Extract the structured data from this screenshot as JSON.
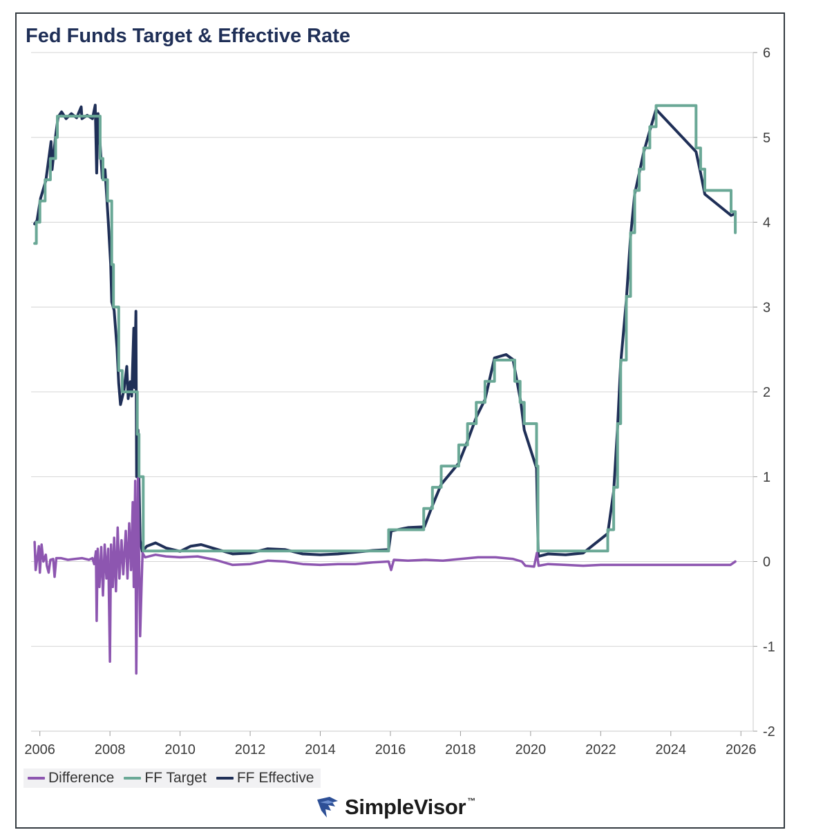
{
  "chart_data": {
    "type": "line",
    "title": "Fed Funds Target & Effective Rate",
    "xlabel": "",
    "ylabel": "",
    "xlim": [
      2005.75,
      2026.35
    ],
    "ylim": [
      -2,
      6
    ],
    "x_ticks": [
      2006,
      2008,
      2010,
      2012,
      2014,
      2016,
      2018,
      2020,
      2022,
      2024,
      2026
    ],
    "y_ticks": [
      -2,
      -1,
      0,
      1,
      2,
      3,
      4,
      5,
      6
    ],
    "y_axis_side": "right",
    "grid": "horizontal",
    "legend_position": "bottom-left",
    "series": [
      {
        "name": "FF Target",
        "color": "#6aa896",
        "step": true,
        "points": [
          [
            2005.85,
            3.75
          ],
          [
            2005.9,
            4.0
          ],
          [
            2006.0,
            4.25
          ],
          [
            2006.15,
            4.5
          ],
          [
            2006.3,
            4.75
          ],
          [
            2006.45,
            5.0
          ],
          [
            2006.5,
            5.25
          ],
          [
            2007.7,
            5.25
          ],
          [
            2007.72,
            4.75
          ],
          [
            2007.8,
            4.5
          ],
          [
            2007.93,
            4.25
          ],
          [
            2008.05,
            3.5
          ],
          [
            2008.1,
            3.0
          ],
          [
            2008.25,
            2.25
          ],
          [
            2008.35,
            2.0
          ],
          [
            2008.78,
            1.5
          ],
          [
            2008.83,
            1.0
          ],
          [
            2008.95,
            0.125
          ],
          [
            2015.95,
            0.375
          ],
          [
            2016.95,
            0.625
          ],
          [
            2017.2,
            0.875
          ],
          [
            2017.45,
            1.125
          ],
          [
            2017.95,
            1.375
          ],
          [
            2018.2,
            1.625
          ],
          [
            2018.45,
            1.875
          ],
          [
            2018.7,
            2.125
          ],
          [
            2018.97,
            2.375
          ],
          [
            2019.55,
            2.125
          ],
          [
            2019.7,
            1.875
          ],
          [
            2019.82,
            1.625
          ],
          [
            2020.17,
            1.125
          ],
          [
            2020.21,
            0.125
          ],
          [
            2022.2,
            0.375
          ],
          [
            2022.37,
            0.875
          ],
          [
            2022.48,
            1.625
          ],
          [
            2022.57,
            2.375
          ],
          [
            2022.73,
            3.125
          ],
          [
            2022.85,
            3.875
          ],
          [
            2022.97,
            4.375
          ],
          [
            2023.1,
            4.625
          ],
          [
            2023.23,
            4.875
          ],
          [
            2023.4,
            5.125
          ],
          [
            2023.58,
            5.375
          ],
          [
            2024.72,
            4.875
          ],
          [
            2024.85,
            4.625
          ],
          [
            2024.97,
            4.375
          ],
          [
            2025.72,
            4.125
          ],
          [
            2025.84,
            3.875
          ]
        ]
      },
      {
        "name": "FF Effective",
        "color": "#1f2f57",
        "step": false,
        "points": [
          [
            2005.85,
            3.98
          ],
          [
            2005.92,
            4.02
          ],
          [
            2006.02,
            4.28
          ],
          [
            2006.17,
            4.49
          ],
          [
            2006.32,
            4.95
          ],
          [
            2006.35,
            4.62
          ],
          [
            2006.45,
            5.02
          ],
          [
            2006.52,
            5.24
          ],
          [
            2006.62,
            5.3
          ],
          [
            2006.75,
            5.22
          ],
          [
            2006.9,
            5.28
          ],
          [
            2007.05,
            5.23
          ],
          [
            2007.18,
            5.36
          ],
          [
            2007.2,
            5.22
          ],
          [
            2007.35,
            5.26
          ],
          [
            2007.5,
            5.22
          ],
          [
            2007.58,
            5.38
          ],
          [
            2007.62,
            4.58
          ],
          [
            2007.66,
            5.28
          ],
          [
            2007.72,
            4.92
          ],
          [
            2007.78,
            4.52
          ],
          [
            2007.86,
            4.62
          ],
          [
            2007.95,
            4.02
          ],
          [
            2008.02,
            3.5
          ],
          [
            2008.05,
            3.06
          ],
          [
            2008.12,
            2.96
          ],
          [
            2008.2,
            2.52
          ],
          [
            2008.25,
            2.1
          ],
          [
            2008.3,
            1.85
          ],
          [
            2008.4,
            2.02
          ],
          [
            2008.48,
            2.3
          ],
          [
            2008.52,
            1.92
          ],
          [
            2008.58,
            2.12
          ],
          [
            2008.62,
            1.95
          ],
          [
            2008.68,
            2.75
          ],
          [
            2008.7,
            2.05
          ],
          [
            2008.74,
            2.95
          ],
          [
            2008.76,
            1.0
          ],
          [
            2008.8,
            1.55
          ],
          [
            2008.86,
            0.25
          ],
          [
            2008.92,
            0.12
          ],
          [
            2009.05,
            0.18
          ],
          [
            2009.3,
            0.22
          ],
          [
            2009.6,
            0.16
          ],
          [
            2010.0,
            0.12
          ],
          [
            2010.3,
            0.18
          ],
          [
            2010.6,
            0.2
          ],
          [
            2011.0,
            0.15
          ],
          [
            2011.5,
            0.09
          ],
          [
            2012.0,
            0.1
          ],
          [
            2012.5,
            0.15
          ],
          [
            2013.0,
            0.14
          ],
          [
            2013.5,
            0.09
          ],
          [
            2014.0,
            0.08
          ],
          [
            2014.5,
            0.09
          ],
          [
            2015.0,
            0.11
          ],
          [
            2015.5,
            0.13
          ],
          [
            2015.95,
            0.14
          ],
          [
            2016.02,
            0.36
          ],
          [
            2016.5,
            0.4
          ],
          [
            2016.97,
            0.41
          ],
          [
            2017.2,
            0.66
          ],
          [
            2017.45,
            0.91
          ],
          [
            2017.95,
            1.16
          ],
          [
            2018.2,
            1.42
          ],
          [
            2018.45,
            1.7
          ],
          [
            2018.7,
            1.91
          ],
          [
            2018.97,
            2.4
          ],
          [
            2019.3,
            2.44
          ],
          [
            2019.5,
            2.38
          ],
          [
            2019.6,
            2.15
          ],
          [
            2019.72,
            1.88
          ],
          [
            2019.82,
            1.55
          ],
          [
            2020.17,
            1.1
          ],
          [
            2020.22,
            0.06
          ],
          [
            2020.5,
            0.09
          ],
          [
            2021.0,
            0.08
          ],
          [
            2021.5,
            0.1
          ],
          [
            2022.2,
            0.33
          ],
          [
            2022.37,
            0.83
          ],
          [
            2022.48,
            1.58
          ],
          [
            2022.57,
            2.33
          ],
          [
            2022.73,
            3.08
          ],
          [
            2022.85,
            3.83
          ],
          [
            2022.97,
            4.33
          ],
          [
            2023.1,
            4.58
          ],
          [
            2023.23,
            4.83
          ],
          [
            2023.4,
            5.08
          ],
          [
            2023.58,
            5.33
          ],
          [
            2024.72,
            4.83
          ],
          [
            2024.85,
            4.58
          ],
          [
            2024.97,
            4.33
          ],
          [
            2025.72,
            4.08
          ],
          [
            2025.84,
            4.1
          ]
        ]
      },
      {
        "name": "Difference",
        "color": "#8d56b0",
        "step": false,
        "points": [
          [
            2005.85,
            0.23
          ],
          [
            2005.88,
            -0.1
          ],
          [
            2005.92,
            0.02
          ],
          [
            2005.97,
            0.18
          ],
          [
            2006.0,
            -0.13
          ],
          [
            2006.05,
            0.2
          ],
          [
            2006.1,
            0.0
          ],
          [
            2006.17,
            0.08
          ],
          [
            2006.2,
            -0.05
          ],
          [
            2006.25,
            -0.13
          ],
          [
            2006.3,
            0.02
          ],
          [
            2006.38,
            0.03
          ],
          [
            2006.42,
            -0.18
          ],
          [
            2006.47,
            0.04
          ],
          [
            2006.6,
            0.04
          ],
          [
            2006.8,
            0.02
          ],
          [
            2007.0,
            0.03
          ],
          [
            2007.2,
            0.04
          ],
          [
            2007.4,
            0.02
          ],
          [
            2007.5,
            0.04
          ],
          [
            2007.55,
            -0.03
          ],
          [
            2007.6,
            0.12
          ],
          [
            2007.62,
            -0.7
          ],
          [
            2007.65,
            0.15
          ],
          [
            2007.7,
            -0.3
          ],
          [
            2007.75,
            0.17
          ],
          [
            2007.8,
            -0.4
          ],
          [
            2007.85,
            0.2
          ],
          [
            2007.9,
            -0.2
          ],
          [
            2007.95,
            0.15
          ],
          [
            2008.0,
            -1.18
          ],
          [
            2008.03,
            0.2
          ],
          [
            2008.08,
            -0.3
          ],
          [
            2008.12,
            0.28
          ],
          [
            2008.17,
            -0.35
          ],
          [
            2008.22,
            0.4
          ],
          [
            2008.27,
            -0.2
          ],
          [
            2008.33,
            0.25
          ],
          [
            2008.38,
            -0.15
          ],
          [
            2008.45,
            0.36
          ],
          [
            2008.5,
            -0.2
          ],
          [
            2008.55,
            0.45
          ],
          [
            2008.6,
            -0.1
          ],
          [
            2008.65,
            0.7
          ],
          [
            2008.68,
            -0.3
          ],
          [
            2008.72,
            0.95
          ],
          [
            2008.75,
            -1.32
          ],
          [
            2008.8,
            0.98
          ],
          [
            2008.86,
            -0.88
          ],
          [
            2008.9,
            -0.3
          ],
          [
            2008.93,
            0.1
          ],
          [
            2009.0,
            0.05
          ],
          [
            2009.3,
            0.08
          ],
          [
            2009.6,
            0.06
          ],
          [
            2010.0,
            0.05
          ],
          [
            2010.5,
            0.06
          ],
          [
            2011.0,
            0.02
          ],
          [
            2011.5,
            -0.04
          ],
          [
            2012.0,
            -0.03
          ],
          [
            2012.5,
            0.01
          ],
          [
            2013.0,
            0.0
          ],
          [
            2013.5,
            -0.03
          ],
          [
            2014.0,
            -0.04
          ],
          [
            2014.5,
            -0.03
          ],
          [
            2015.0,
            -0.03
          ],
          [
            2015.5,
            -0.01
          ],
          [
            2015.95,
            0.0
          ],
          [
            2016.02,
            -0.1
          ],
          [
            2016.1,
            0.02
          ],
          [
            2016.5,
            0.01
          ],
          [
            2017.0,
            0.02
          ],
          [
            2017.5,
            0.01
          ],
          [
            2018.0,
            0.03
          ],
          [
            2018.5,
            0.05
          ],
          [
            2019.0,
            0.05
          ],
          [
            2019.5,
            0.03
          ],
          [
            2019.75,
            0.0
          ],
          [
            2019.85,
            -0.05
          ],
          [
            2020.1,
            -0.06
          ],
          [
            2020.18,
            0.1
          ],
          [
            2020.23,
            -0.05
          ],
          [
            2020.5,
            -0.03
          ],
          [
            2021.0,
            -0.04
          ],
          [
            2021.5,
            -0.05
          ],
          [
            2022.0,
            -0.04
          ],
          [
            2023.0,
            -0.04
          ],
          [
            2024.0,
            -0.04
          ],
          [
            2025.0,
            -0.04
          ],
          [
            2025.7,
            -0.04
          ],
          [
            2025.84,
            0.0
          ]
        ]
      }
    ]
  },
  "legend": {
    "items": [
      {
        "label": "Difference",
        "color": "#8d56b0"
      },
      {
        "label": "FF Target",
        "color": "#6aa896"
      },
      {
        "label": "FF Effective",
        "color": "#1f2f57"
      }
    ]
  },
  "brand": {
    "name": "SimpleVisor",
    "trademark": "™"
  }
}
